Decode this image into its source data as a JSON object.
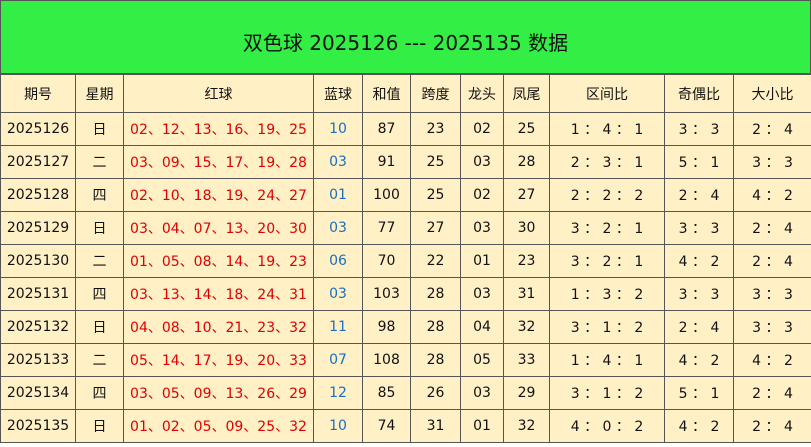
{
  "header": {
    "title": "双色球 2025126 --- 2025135 数据"
  },
  "table": {
    "columns": [
      "期号",
      "星期",
      "红球",
      "蓝球",
      "和值",
      "跨度",
      "龙头",
      "凤尾",
      "区间比",
      "奇偶比",
      "大小比"
    ],
    "rows": [
      [
        2025126,
        "日",
        "02、12、13、16、19、25",
        "10",
        87,
        23,
        "02",
        25,
        "1 ： 4 ： 1",
        "3 ： 3",
        "2 ： 4"
      ],
      [
        2025127,
        "二",
        "03、09、15、17、19、28",
        "03",
        91,
        25,
        "03",
        28,
        "2 ： 3 ： 1",
        "5 ： 1",
        "3 ： 3"
      ],
      [
        2025128,
        "四",
        "02、10、18、19、24、27",
        "01",
        100,
        25,
        "02",
        27,
        "2 ： 2 ： 2",
        "2 ： 4",
        "4 ： 2"
      ],
      [
        2025129,
        "日",
        "03、04、07、13、20、30",
        "03",
        77,
        27,
        "03",
        30,
        "3 ： 2 ： 1",
        "3 ： 3",
        "2 ： 4"
      ],
      [
        2025130,
        "二",
        "01、05、08、14、19、23",
        "06",
        70,
        22,
        "01",
        23,
        "3 ： 2 ： 1",
        "4 ： 2",
        "2 ： 4"
      ],
      [
        2025131,
        "四",
        "03、13、14、18、24、31",
        "03",
        103,
        28,
        "03",
        31,
        "1 ： 3 ： 2",
        "3 ： 3",
        "3 ： 3"
      ],
      [
        2025132,
        "日",
        "04、08、10、21、23、32",
        "11",
        98,
        28,
        "04",
        32,
        "3 ： 1 ： 2",
        "2 ： 4",
        "3 ： 3"
      ],
      [
        2025133,
        "二",
        "05、14、17、19、20、33",
        "07",
        108,
        28,
        "05",
        33,
        "1 ： 4 ： 1",
        "4 ： 2",
        "4 ： 2"
      ],
      [
        2025134,
        "四",
        "03、05、09、13、26、29",
        "12",
        85,
        26,
        "03",
        29,
        "3 ： 1 ： 2",
        "5 ： 1",
        "2 ： 4"
      ],
      [
        2025135,
        "日",
        "01、02、05、09、25、32",
        "10",
        74,
        31,
        "01",
        32,
        "4 ： 0 ： 2",
        "4 ： 2",
        "2 ： 4"
      ]
    ]
  }
}
